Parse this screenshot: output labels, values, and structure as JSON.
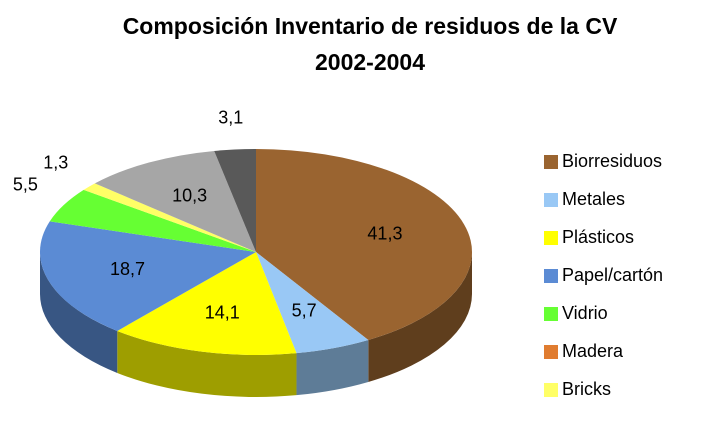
{
  "chart_data": {
    "type": "pie3d",
    "title": "Composición Inventario de residuos de la CV 2002-2004",
    "categories": [
      "Biorresiduos",
      "Metales",
      "Plásticos",
      "Papel/cartón",
      "Vidrio",
      "Madera",
      "Bricks",
      null,
      null
    ],
    "values": [
      41.3,
      5.7,
      14.1,
      18.7,
      5.5,
      0,
      1.3,
      10.3,
      3.1
    ],
    "value_labels": [
      "41,3",
      "5,7",
      "14,1",
      "18,7",
      "5,5",
      null,
      "1,3",
      "10,3",
      "3,1"
    ],
    "colors": [
      "#9a6430",
      "#99c8f5",
      "#ffff00",
      "#5b8bd4",
      "#66ff33",
      "#e07c30",
      "#ffff66",
      "#a6a6a6",
      "#595959"
    ],
    "legend": "right"
  }
}
